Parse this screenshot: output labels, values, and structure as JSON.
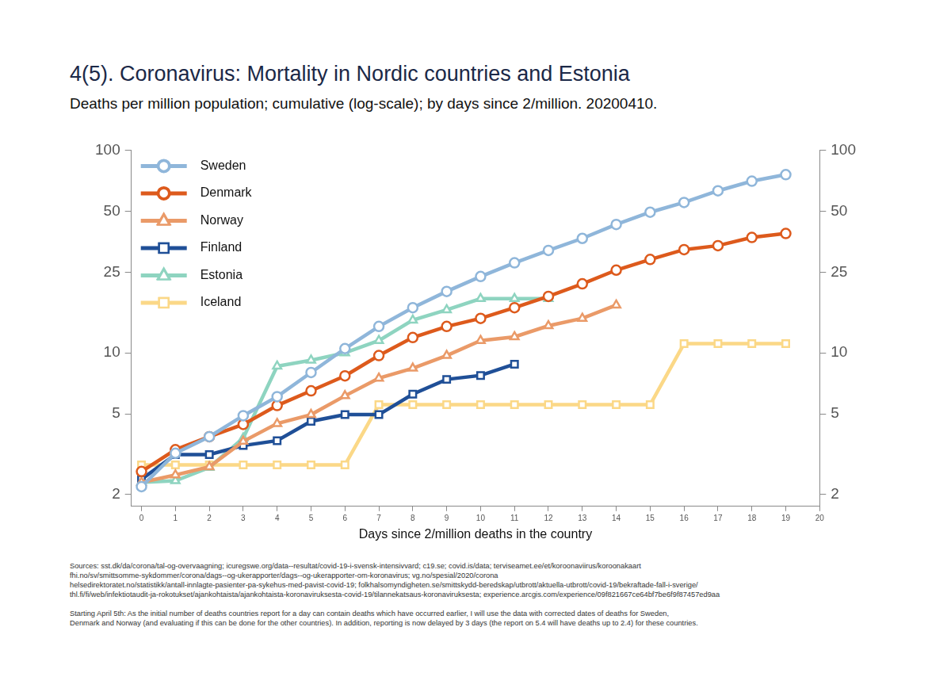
{
  "chart_data": {
    "type": "line",
    "title": "4(5). Coronavirus: Mortality in Nordic countries and Estonia",
    "subtitle": "Deaths per million population; cumulative (log-scale); by days since 2/million. 20200410.",
    "x_label": "Days since 2/million deaths in the country",
    "annotations": [
      "Sources: sst.dk/da/corona/tal-og-overvaagning; icuregswe.org/data--resultat/covid-19-i-svensk-intensivvard; c19.se; covid.is/data;  terviseamet.ee/et/koroonaviirus/koroonakaart\nfhi.no/sv/smittsomme-sykdommer/corona/dags--og-ukerapporter/dags--og-ukerapporter-om-koronavirus; vg.no/spesial/2020/corona\nhelsedirektoratet.no/statistikk/antall-innlagte-pasienter-pa-sykehus-med-pavist-covid-19; folkhalsomyndigheten.se/smittskydd-beredskap/utbrott/aktuella-utbrott/covid-19/bekraftade-fall-i-sverige/\nthl.fi/fi/web/infektiotaudit-ja-rokotukset/ajankohtaista/ajankohtaista-koronaviruksesta-covid-19/tilannekatsaus-koronaviruksesta; experience.arcgis.com/experience/09f821667ce64bf7be6f9f87457ed9aa",
      "Starting April 5th: As the initial number of deaths countries report for a day can contain deaths which have occurred earlier, I will use the data with corrected dates of deaths for Sweden,\nDenmark and Norway (and evaluating if this can be done for the other countries). In addition, reporting is now delayed by 3 days (the report on 5.4 will have deaths up to 2.4) for these countries."
    ],
    "x": [
      0,
      1,
      2,
      3,
      4,
      5,
      6,
      7,
      8,
      9,
      10,
      11,
      12,
      13,
      14,
      15,
      16,
      17,
      18,
      19
    ],
    "series": [
      {
        "name": "Sweden",
        "color": "#8fb6da",
        "marker": "circle",
        "values": [
          2.19,
          3.2,
          3.86,
          4.9,
          6.08,
          8.0,
          10.5,
          13.5,
          16.7,
          20.1,
          23.8,
          27.8,
          32.0,
          36.7,
          43.0,
          49.4,
          55.2,
          63.0,
          70.3,
          75.7
        ]
      },
      {
        "name": "Denmark",
        "color": "#dd5a1c",
        "marker": "circle",
        "values": [
          2.6,
          3.33,
          3.86,
          4.44,
          5.5,
          6.5,
          7.7,
          9.7,
          11.9,
          13.5,
          14.8,
          16.7,
          19.0,
          21.9,
          25.6,
          28.9,
          32.3,
          33.8,
          37.1,
          38.8
        ]
      },
      {
        "name": "Norway",
        "color": "#ea9a68",
        "marker": "triangle",
        "values": [
          2.3,
          2.5,
          2.74,
          3.66,
          4.48,
          4.96,
          6.14,
          7.5,
          8.4,
          9.7,
          11.5,
          12.0,
          13.6,
          14.8,
          17.2,
          null,
          null,
          null,
          null,
          null
        ]
      },
      {
        "name": "Finland",
        "color": "#1f4f97",
        "marker": "square",
        "values": [
          2.38,
          3.15,
          3.15,
          3.49,
          3.69,
          4.6,
          4.96,
          4.96,
          6.26,
          7.4,
          7.74,
          8.8,
          null,
          null,
          null,
          null,
          null,
          null,
          null,
          null
        ]
      },
      {
        "name": "Estonia",
        "color": "#8ed4c0",
        "marker": "triangle",
        "values": [
          2.3,
          2.34,
          2.72,
          3.8,
          8.6,
          9.2,
          10.0,
          11.5,
          14.5,
          16.3,
          18.5,
          18.5,
          18.5,
          null,
          null,
          null,
          null,
          null,
          null,
          null
        ]
      },
      {
        "name": "Iceland",
        "color": "#fbd887",
        "marker": "square",
        "values": [
          2.8,
          2.8,
          2.8,
          2.8,
          2.8,
          2.8,
          2.8,
          5.55,
          5.55,
          5.55,
          5.55,
          5.55,
          5.55,
          5.55,
          5.55,
          5.55,
          11.1,
          11.1,
          11.1,
          11.1
        ]
      }
    ],
    "xlim": [
      -0.3,
      20
    ],
    "xticks": [
      0,
      1,
      2,
      3,
      4,
      5,
      6,
      7,
      8,
      9,
      10,
      11,
      12,
      13,
      14,
      15,
      16,
      17,
      18,
      19,
      20
    ],
    "ylim": [
      1.75,
      100
    ],
    "yticks": [
      2,
      5,
      10,
      25,
      50,
      100
    ],
    "y2lim": [
      1.75,
      100
    ],
    "y2ticks": [
      2,
      5,
      10,
      25,
      50,
      100
    ],
    "log": "y",
    "grid": false,
    "legend": "upper left"
  }
}
